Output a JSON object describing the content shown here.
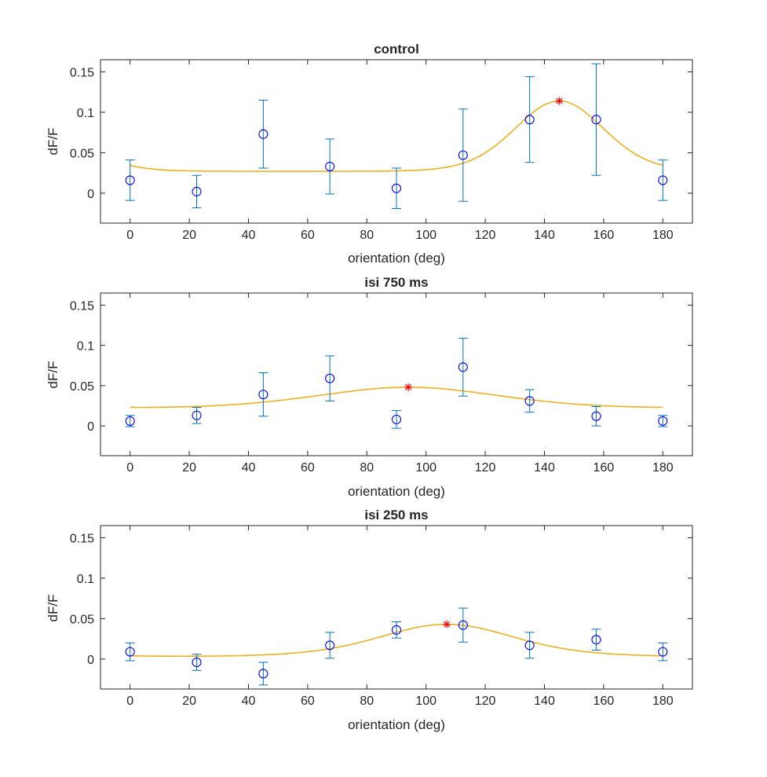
{
  "chart_data": [
    {
      "type": "scatter",
      "title": "control",
      "xlabel": "orientation (deg)",
      "ylabel": "dF/F",
      "xlim": [
        -10,
        190
      ],
      "ylim": [
        -0.037,
        0.165
      ],
      "xticks": [
        0,
        20,
        40,
        60,
        80,
        100,
        120,
        140,
        160,
        180
      ],
      "yticks": [
        0,
        0.05,
        0.1,
        0.15
      ],
      "ytick_labels": [
        "0",
        "0.05",
        "0.1",
        "0.15"
      ],
      "grid": false,
      "x": [
        0,
        22.5,
        45,
        67.5,
        90,
        112.5,
        135,
        157.5,
        180
      ],
      "y": [
        0.016,
        0.002,
        0.073,
        0.033,
        0.006,
        0.047,
        0.091,
        0.091,
        0.016
      ],
      "yerr": [
        0.025,
        0.02,
        0.042,
        0.034,
        0.025,
        0.057,
        0.053,
        0.069,
        0.025
      ],
      "fit": {
        "baseline": 0.027,
        "amplitude": 0.087,
        "peak": 145,
        "width": 15
      },
      "peak_marker": {
        "x": 145,
        "y": 0.114
      },
      "colors": {
        "points": "#0000FF",
        "errorbars": "#0072BD",
        "fit": "#EDB120",
        "peak": "#FF0000"
      }
    },
    {
      "type": "scatter",
      "title": "isi 750 ms",
      "xlabel": "orientation (deg)",
      "ylabel": "dF/F",
      "xlim": [
        -10,
        190
      ],
      "ylim": [
        -0.037,
        0.165
      ],
      "xticks": [
        0,
        20,
        40,
        60,
        80,
        100,
        120,
        140,
        160,
        180
      ],
      "yticks": [
        0,
        0.05,
        0.1,
        0.15
      ],
      "ytick_labels": [
        "0",
        "0.05",
        "0.1",
        "0.15"
      ],
      "grid": false,
      "x": [
        0,
        22.5,
        45,
        67.5,
        90,
        112.5,
        135,
        157.5,
        180
      ],
      "y": [
        0.006,
        0.013,
        0.039,
        0.059,
        0.008,
        0.073,
        0.031,
        0.012,
        0.006
      ],
      "yerr": [
        0.007,
        0.01,
        0.027,
        0.028,
        0.011,
        0.036,
        0.014,
        0.012,
        0.007
      ],
      "fit": {
        "baseline": 0.016,
        "amplitude": 0.032,
        "peak": 94,
        "width": 35
      },
      "peak_marker": {
        "x": 94,
        "y": 0.048
      },
      "colors": {
        "points": "#0000FF",
        "errorbars": "#0072BD",
        "fit": "#EDB120",
        "peak": "#FF0000"
      }
    },
    {
      "type": "scatter",
      "title": "isi 250 ms",
      "xlabel": "orientation (deg)",
      "ylabel": "dF/F",
      "xlim": [
        -10,
        190
      ],
      "ylim": [
        -0.037,
        0.165
      ],
      "xticks": [
        0,
        20,
        40,
        60,
        80,
        100,
        120,
        140,
        160,
        180
      ],
      "yticks": [
        0,
        0.05,
        0.1,
        0.15
      ],
      "ytick_labels": [
        "0",
        "0.05",
        "0.1",
        "0.15"
      ],
      "grid": false,
      "x": [
        0,
        22.5,
        45,
        67.5,
        90,
        112.5,
        135,
        157.5,
        180
      ],
      "y": [
        0.009,
        -0.004,
        -0.018,
        0.017,
        0.036,
        0.042,
        0.017,
        0.024,
        0.009
      ],
      "yerr": [
        0.011,
        0.01,
        0.014,
        0.016,
        0.01,
        0.021,
        0.016,
        0.013,
        0.011
      ],
      "fit": {
        "baseline": 0.002,
        "amplitude": 0.041,
        "peak": 107,
        "width": 23
      },
      "peak_marker": {
        "x": 107,
        "y": 0.043
      },
      "colors": {
        "points": "#0000FF",
        "errorbars": "#0072BD",
        "fit": "#EDB120",
        "peak": "#FF0000"
      }
    }
  ]
}
